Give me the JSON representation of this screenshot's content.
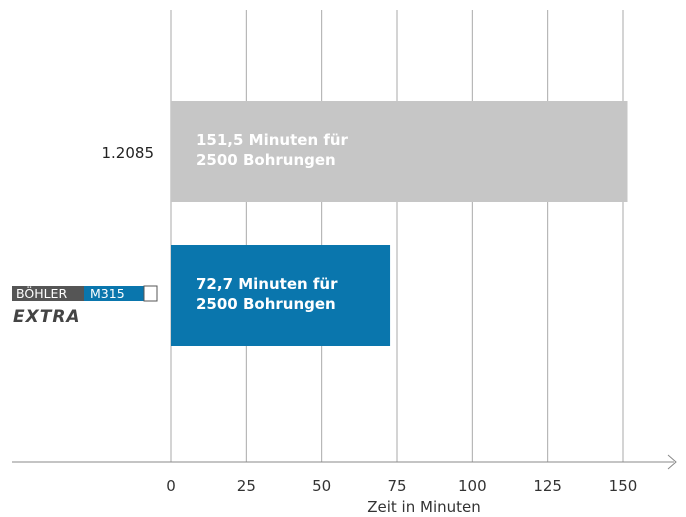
{
  "chart_data": {
    "type": "bar",
    "orientation": "horizontal",
    "categories": [
      "1.2085",
      "BÖHLER M315 EXTRA"
    ],
    "values": [
      151.5,
      72.7
    ],
    "colors": [
      "#c6c6c6",
      "#0a76ad"
    ],
    "bar_labels": [
      [
        "151,5 Minuten für",
        "2500 Bohrungen"
      ],
      [
        "72,7 Minuten für",
        "2500 Bohrungen"
      ]
    ],
    "xlabel": "Zeit in Minuten",
    "xlim": [
      0,
      150
    ],
    "xticks": [
      0,
      25,
      50,
      75,
      100,
      125,
      150
    ],
    "grid": "vertical",
    "logo": {
      "brand": "BÖHLER",
      "grade": "M315",
      "suffix": "EXTRA",
      "brand_color": "#555555",
      "grade_color": "#0a76ad"
    }
  }
}
